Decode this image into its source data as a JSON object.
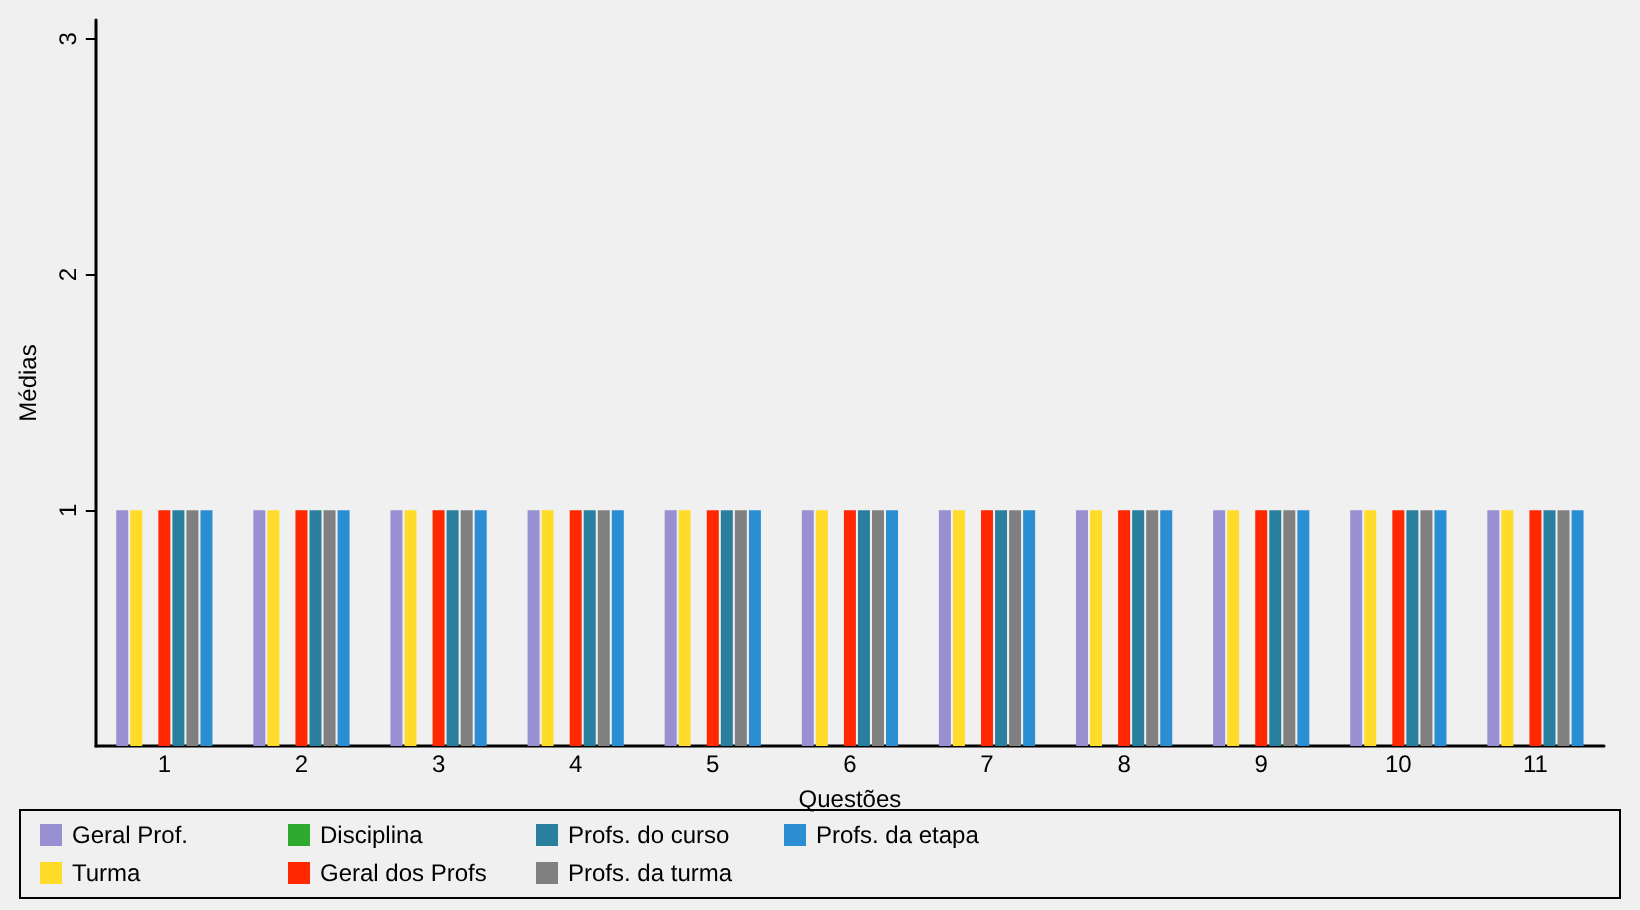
{
  "chart_data": {
    "type": "bar",
    "xlabel": "Questões",
    "ylabel": "Médias",
    "categories": [
      "1",
      "2",
      "3",
      "4",
      "5",
      "6",
      "7",
      "8",
      "9",
      "10",
      "11"
    ],
    "series": [
      {
        "name": "Geral Prof.",
        "color": "#9890d0",
        "values": [
          1,
          1,
          1,
          1,
          1,
          1,
          1,
          1,
          1,
          1,
          1
        ]
      },
      {
        "name": "Turma",
        "color": "#ffdc2a",
        "values": [
          1,
          1,
          1,
          1,
          1,
          1,
          1,
          1,
          1,
          1,
          1
        ]
      },
      {
        "name": "Disciplina",
        "color": "#2eaa2e",
        "values": [
          null,
          null,
          null,
          null,
          null,
          null,
          null,
          null,
          null,
          null,
          null
        ]
      },
      {
        "name": "Geral dos Profs",
        "color": "#ff2800",
        "values": [
          1,
          1,
          1,
          1,
          1,
          1,
          1,
          1,
          1,
          1,
          1
        ]
      },
      {
        "name": "Profs. do curso",
        "color": "#2b7f9e",
        "values": [
          1,
          1,
          1,
          1,
          1,
          1,
          1,
          1,
          1,
          1,
          1
        ]
      },
      {
        "name": "Profs. da turma",
        "color": "#808080",
        "values": [
          1,
          1,
          1,
          1,
          1,
          1,
          1,
          1,
          1,
          1,
          1
        ]
      },
      {
        "name": "Profs. da etapa",
        "color": "#2b8ed2",
        "values": [
          1,
          1,
          1,
          1,
          1,
          1,
          1,
          1,
          1,
          1,
          1
        ]
      }
    ],
    "ylim": [
      0,
      3.08
    ],
    "yticks": [
      1,
      2,
      3
    ],
    "legend": "bottom"
  }
}
